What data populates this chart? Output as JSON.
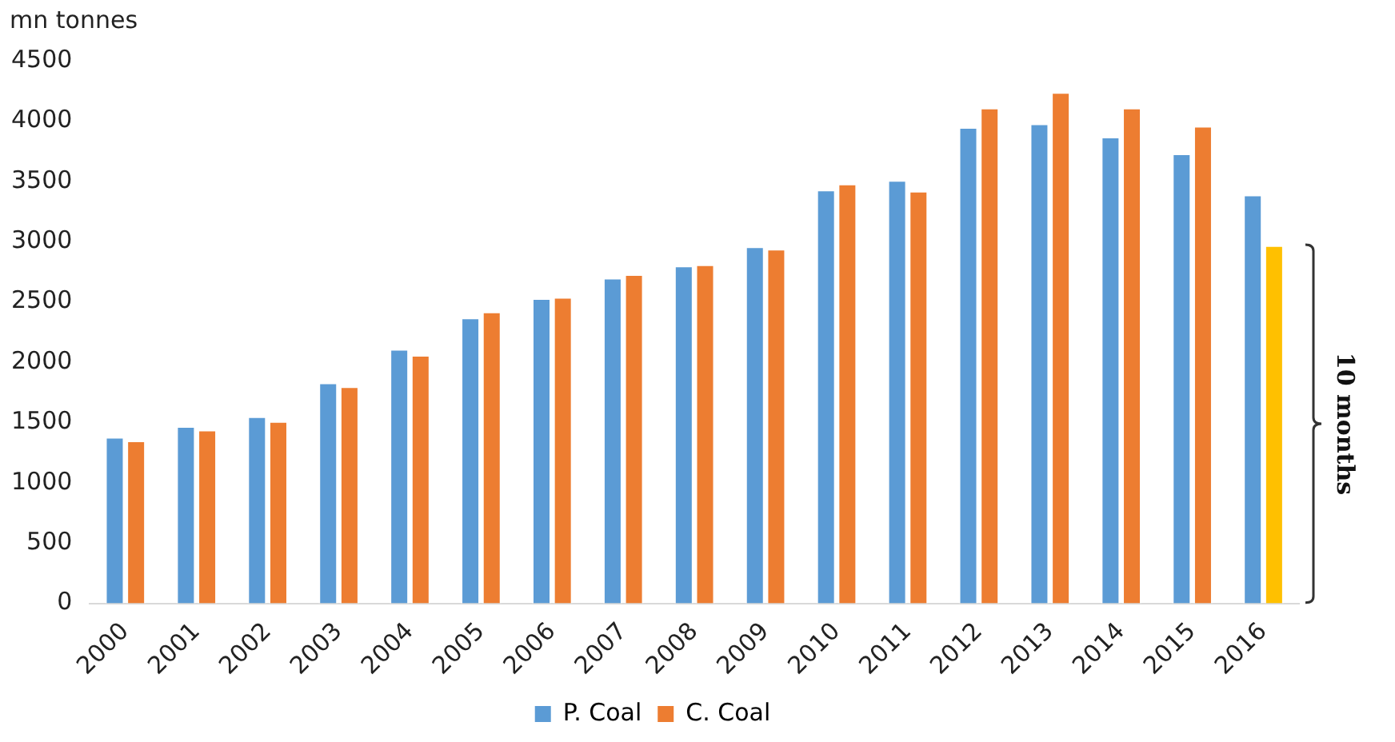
{
  "chart_data": {
    "type": "bar",
    "ylabel": "mn tonnes",
    "categories": [
      "2000",
      "2001",
      "2002",
      "2003",
      "2004",
      "2005",
      "2006",
      "2007",
      "2008",
      "2009",
      "2010",
      "2011",
      "2012",
      "2013",
      "2014",
      "2015",
      "2016"
    ],
    "series": [
      {
        "name": "P. Coal",
        "color": "#5b9bd5",
        "values": [
          1380,
          1470,
          1550,
          1830,
          2110,
          2370,
          2530,
          2700,
          2800,
          2960,
          3430,
          3510,
          3950,
          3980,
          3870,
          3730,
          3390
        ]
      },
      {
        "name": "C. Coal",
        "color": "#ed7d31",
        "colors": [
          "#ed7d31",
          "#ed7d31",
          "#ed7d31",
          "#ed7d31",
          "#ed7d31",
          "#ed7d31",
          "#ed7d31",
          "#ed7d31",
          "#ed7d31",
          "#ed7d31",
          "#ed7d31",
          "#ed7d31",
          "#ed7d31",
          "#ed7d31",
          "#ed7d31",
          "#ed7d31",
          "#ffc000"
        ],
        "values": [
          1350,
          1440,
          1510,
          1800,
          2060,
          2420,
          2540,
          2730,
          2810,
          2940,
          3480,
          3420,
          4110,
          4240,
          4110,
          3960,
          2970
        ]
      }
    ],
    "ylim": [
      0,
      4500
    ],
    "yticks": [
      0,
      500,
      1000,
      1500,
      2000,
      2500,
      3000,
      3500,
      4000,
      4500
    ],
    "grid": false,
    "legend": "bottom",
    "annotations": [
      "10 months"
    ]
  }
}
